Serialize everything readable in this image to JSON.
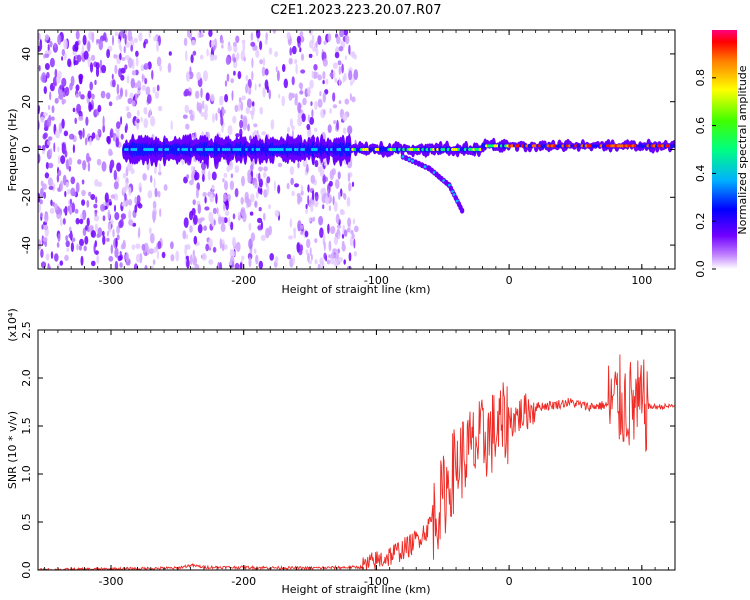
{
  "figure": {
    "title": "C2E1.2023.223.20.07.R07"
  },
  "chart_data": [
    {
      "type": "heatmap",
      "xlabel": "Height of straight line (km)",
      "ylabel": "Frequency (Hz)",
      "xlim": [
        -355,
        125
      ],
      "ylim": [
        -50,
        50
      ],
      "x_ticks": [
        -300,
        -200,
        -100,
        0,
        100
      ],
      "x_tick_labels": [
        "-300",
        "-200",
        "-100",
        "0",
        "100"
      ],
      "y_ticks": [
        -40,
        -20,
        0,
        20,
        40
      ],
      "y_tick_labels": [
        "-40",
        "-20",
        "0",
        "20",
        "40"
      ],
      "colorbar": {
        "label": "Normalized spectral amplitude",
        "range": [
          0.0,
          1.0
        ],
        "ticks": [
          0.0,
          0.2,
          0.4,
          0.6,
          0.8
        ],
        "tick_labels": [
          "0.0",
          "0.2",
          "0.4",
          "0.6",
          "0.8"
        ],
        "colormap": [
          "#ffffff",
          "#c080ff",
          "#7000ff",
          "#0000ff",
          "#00b0ff",
          "#00ff80",
          "#40ff00",
          "#ffff00",
          "#ff8000",
          "#ff0000",
          "#ff0080"
        ]
      },
      "features": [
        {
          "name": "central band",
          "x_range": [
            -290,
            125
          ],
          "center_freq": 0
        },
        {
          "name": "descending branch",
          "points": [
            [
              -80,
              -3
            ],
            [
              -60,
              -8
            ],
            [
              -45,
              -15
            ],
            [
              -35,
              -26
            ]
          ]
        },
        {
          "name": "noise region",
          "x_range": [
            -355,
            -115
          ],
          "freq_range": [
            -50,
            50
          ]
        }
      ]
    },
    {
      "type": "line",
      "xlabel": "Height of straight line (km)",
      "ylabel": "SNR (10 * v/v)",
      "y_multiplier": "(x10⁴)",
      "xlim": [
        -355,
        125
      ],
      "ylim": [
        0,
        2.5
      ],
      "x_ticks": [
        -300,
        -200,
        -100,
        0,
        100
      ],
      "x_tick_labels": [
        "-300",
        "-200",
        "-100",
        "0",
        "100"
      ],
      "y_ticks": [
        0,
        0.5,
        1.0,
        1.5,
        2.0,
        2.5
      ],
      "y_tick_labels": [
        "0.0",
        "0.5",
        "1.0",
        "1.5",
        "2.0",
        "2.5"
      ],
      "series": [
        {
          "color": "#ee2a24",
          "envelope": [
            [
              -355,
              0.0
            ],
            [
              -250,
              0.02
            ],
            [
              -240,
              0.05
            ],
            [
              -230,
              0.03
            ],
            [
              -150,
              0.02
            ],
            [
              -110,
              0.03
            ],
            [
              -90,
              0.15
            ],
            [
              -75,
              0.25
            ],
            [
              -60,
              0.45
            ],
            [
              -50,
              0.75
            ],
            [
              -40,
              1.1
            ],
            [
              -30,
              1.25
            ],
            [
              -20,
              1.35
            ],
            [
              -10,
              1.45
            ],
            [
              0,
              1.55
            ],
            [
              10,
              1.63
            ],
            [
              20,
              1.7
            ],
            [
              35,
              1.72
            ],
            [
              45,
              1.75
            ],
            [
              60,
              1.7
            ],
            [
              75,
              1.72
            ],
            [
              85,
              1.75
            ],
            [
              95,
              1.7
            ],
            [
              105,
              1.7
            ],
            [
              115,
              1.7
            ],
            [
              125,
              1.71
            ]
          ]
        }
      ]
    }
  ]
}
